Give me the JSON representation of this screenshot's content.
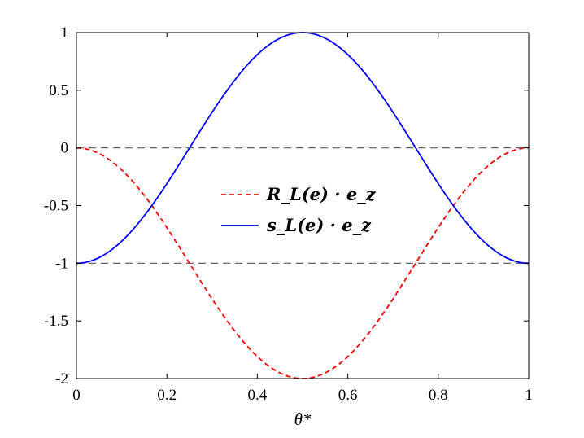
{
  "chart_data": {
    "type": "line",
    "xlabel": "θ*",
    "ylabel": "",
    "xlim": [
      0,
      1
    ],
    "ylim": [
      -2,
      1
    ],
    "x_ticks": [
      0,
      0.2,
      0.4,
      0.6,
      0.8,
      1
    ],
    "x_tick_labels": [
      "0",
      "0.2",
      "0.4",
      "0.6",
      "0.8",
      "1"
    ],
    "y_ticks": [
      -2,
      -1.5,
      -1,
      -0.5,
      0,
      0.5,
      1
    ],
    "y_tick_labels": [
      "-2",
      "-1.5",
      "-1",
      "-0.5",
      "0",
      "0.5",
      "1"
    ],
    "grid": false,
    "legend_position": "center",
    "series": [
      {
        "name": "R_L(e) · e_z",
        "style": "dashed",
        "color": "#ff0000",
        "x": [
          0,
          0.05,
          0.1,
          0.15,
          0.2,
          0.25,
          0.3,
          0.35,
          0.4,
          0.45,
          0.5,
          0.55,
          0.6,
          0.65,
          0.7,
          0.75,
          0.8,
          0.85,
          0.9,
          0.95,
          1
        ],
        "y": [
          0,
          -0.049,
          -0.191,
          -0.412,
          -0.691,
          -1.0,
          -1.309,
          -1.588,
          -1.809,
          -1.951,
          -2.0,
          -1.951,
          -1.809,
          -1.588,
          -1.309,
          -1.0,
          -0.691,
          -0.412,
          -0.191,
          -0.049,
          0
        ]
      },
      {
        "name": "s_L(e) · e_z",
        "style": "solid",
        "color": "#0000ff",
        "x": [
          0,
          0.05,
          0.1,
          0.15,
          0.2,
          0.25,
          0.3,
          0.35,
          0.4,
          0.45,
          0.5,
          0.55,
          0.6,
          0.65,
          0.7,
          0.75,
          0.8,
          0.85,
          0.9,
          0.95,
          1
        ],
        "y": [
          -1,
          -0.951,
          -0.809,
          -0.588,
          -0.309,
          0,
          0.309,
          0.588,
          0.809,
          0.951,
          1.0,
          0.951,
          0.809,
          0.588,
          0.309,
          0,
          -0.309,
          -0.588,
          -0.809,
          -0.951,
          -1
        ]
      }
    ],
    "reference_lines": [
      {
        "y": 0,
        "style": "dashed",
        "color": "#555555"
      },
      {
        "y": -1,
        "style": "dashed",
        "color": "#555555"
      }
    ]
  }
}
